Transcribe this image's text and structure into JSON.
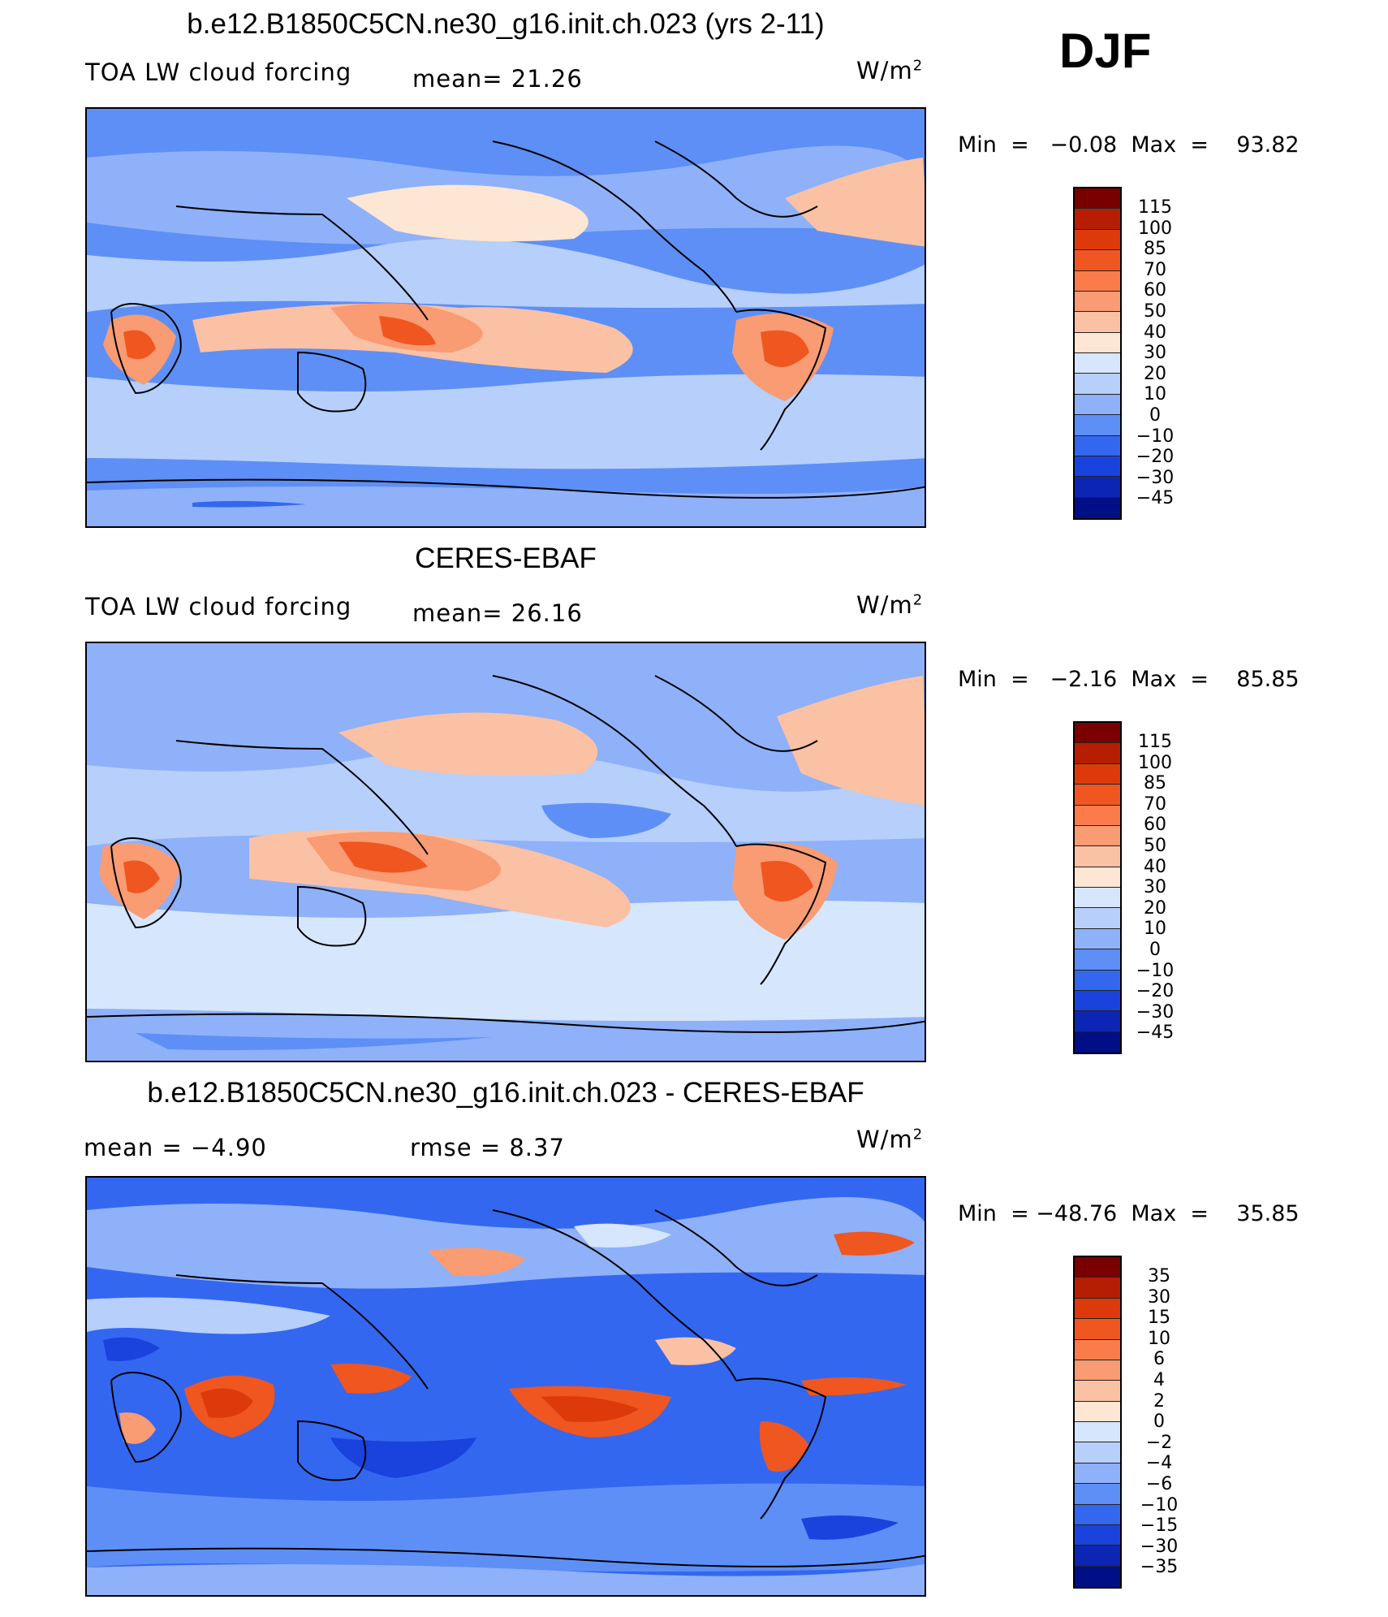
{
  "season": "DJF",
  "unit": {
    "base": "W/m",
    "exp": "2"
  },
  "panels": [
    {
      "title": "b.e12.B1850C5CN.ne30_g16.init.ch.023 (yrs 2-11)",
      "variable": "TOA LW cloud forcing",
      "stat1": "mean=  21.26",
      "stat2": "",
      "minmax": "Min  =   −0.08  Max  =    93.82",
      "colorbar": {
        "levels": [
          "115",
          "100",
          "85",
          "70",
          "60",
          "50",
          "40",
          "30",
          "20",
          "10",
          "0",
          "−10",
          "−20",
          "−30",
          "−45"
        ],
        "colors": [
          "#7a0000",
          "#b51e02",
          "#dd3a0c",
          "#f0561f",
          "#fb7c4a",
          "#f99b73",
          "#fbc1a4",
          "#fde6d3",
          "#d6e6fc",
          "#b6cffb",
          "#8eb1f9",
          "#5e8ff6",
          "#3467f0",
          "#1a42dd",
          "#0c25b4",
          "#000f86"
        ]
      }
    },
    {
      "title": "CERES-EBAF",
      "variable": "TOA LW cloud forcing",
      "stat1": "mean=  26.16",
      "stat2": "",
      "minmax": "Min  =   −2.16  Max  =    85.85",
      "colorbar": {
        "levels": [
          "115",
          "100",
          "85",
          "70",
          "60",
          "50",
          "40",
          "30",
          "20",
          "10",
          "0",
          "−10",
          "−20",
          "−30",
          "−45"
        ],
        "colors": [
          "#7a0000",
          "#b51e02",
          "#dd3a0c",
          "#f0561f",
          "#fb7c4a",
          "#f99b73",
          "#fbc1a4",
          "#fde6d3",
          "#d6e6fc",
          "#b6cffb",
          "#8eb1f9",
          "#5e8ff6",
          "#3467f0",
          "#1a42dd",
          "#0c25b4",
          "#000f86"
        ]
      }
    },
    {
      "title": "b.e12.B1850C5CN.ne30_g16.init.ch.023 - CERES-EBAF",
      "variable": "",
      "stat1": "mean =   −4.90",
      "stat2": "rmse =    8.37",
      "minmax": "Min  = −48.76  Max  =    35.85",
      "colorbar": {
        "levels": [
          "35",
          "30",
          "15",
          "10",
          "6",
          "4",
          "2",
          "0",
          "−2",
          "−4",
          "−6",
          "−10",
          "−15",
          "−30",
          "−35"
        ],
        "colors": [
          "#7a0000",
          "#b51e02",
          "#dd3a0c",
          "#f0561f",
          "#fb7c4a",
          "#f99b73",
          "#fbc1a4",
          "#fde6d3",
          "#d6e6fc",
          "#b6cffb",
          "#8eb1f9",
          "#5e8ff6",
          "#3467f0",
          "#1a42dd",
          "#0c25b4",
          "#000f86"
        ]
      }
    }
  ]
}
